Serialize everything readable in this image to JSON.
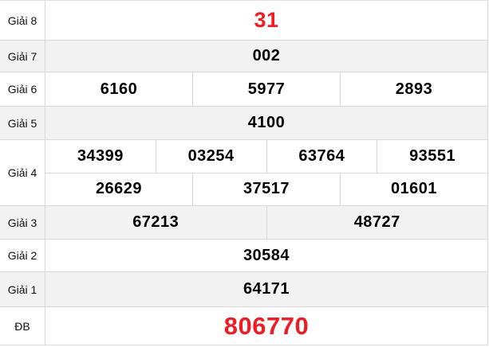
{
  "table": {
    "rows": [
      {
        "label": "Giải 8",
        "values": [
          "31"
        ]
      },
      {
        "label": "Giải 7",
        "values": [
          "002"
        ]
      },
      {
        "label": "Giải 6",
        "values": [
          "6160",
          "5977",
          "2893"
        ]
      },
      {
        "label": "Giải 5",
        "values": [
          "4100"
        ]
      },
      {
        "label": "Giải 4",
        "values_row1": [
          "34399",
          "03254",
          "63764",
          "93551"
        ],
        "values_row2": [
          "26629",
          "37517",
          "01601"
        ]
      },
      {
        "label": "Giải 3",
        "values": [
          "67213",
          "48727"
        ]
      },
      {
        "label": "Giải 2",
        "values": [
          "30584"
        ]
      },
      {
        "label": "Giải 1",
        "values": [
          "64171"
        ]
      },
      {
        "label": "ĐB",
        "values": [
          "806770"
        ]
      }
    ],
    "colors": {
      "highlight_red": "#ee1c25",
      "row_alt_bg": "#f2f2f2",
      "border": "#d9d9d9"
    }
  }
}
